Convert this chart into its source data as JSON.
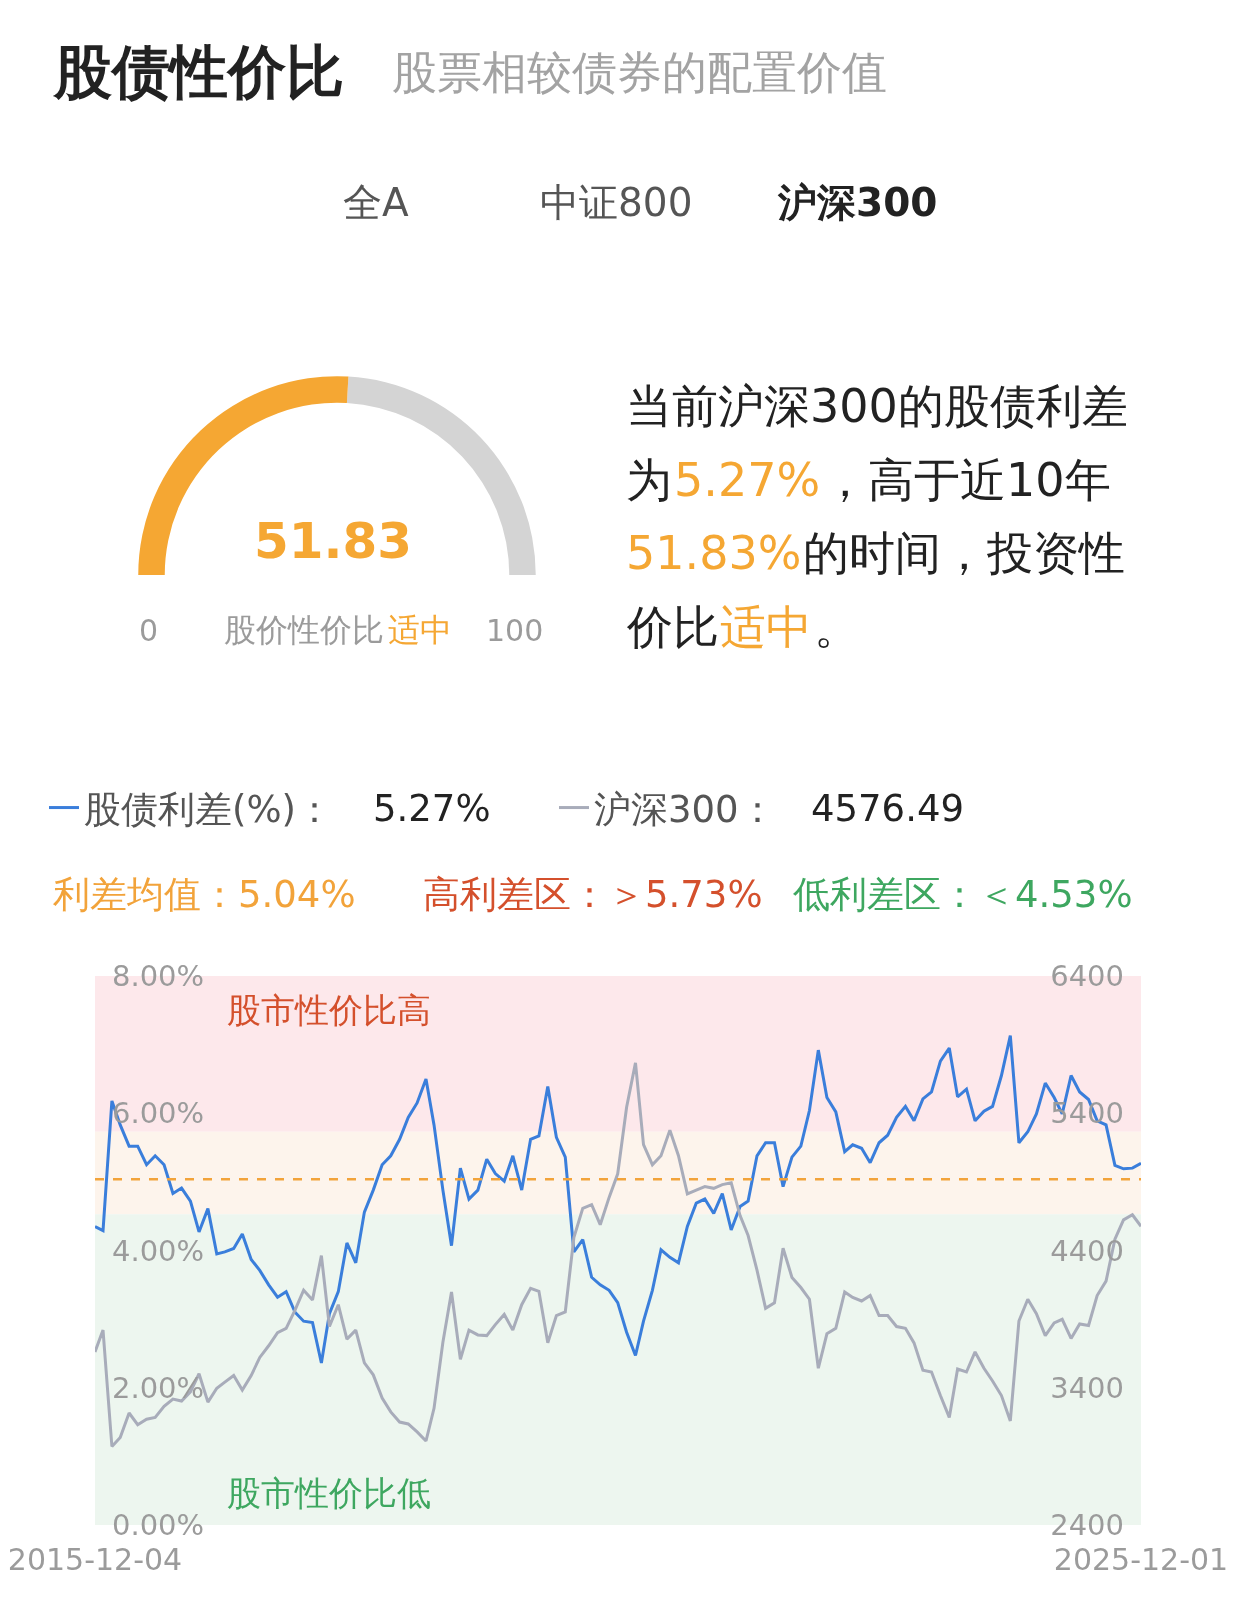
{
  "chart_data": [
    {
      "type": "donut",
      "title": "股债性价比",
      "subtitle": "股票相较债券的配置价值",
      "categories": [
        null,
        null
      ],
      "values": [
        51.83,
        48.17
      ],
      "colors": [
        "#f5a733",
        "#d4d4d4"
      ],
      "value_labels": [
        "51.83",
        null
      ],
      "annotations": [
        "全A",
        "中证800",
        "沪深300",
        "0",
        "股价性价比",
        "适中",
        "100",
        "当前沪深300的股债利差",
        "为",
        "5.27%",
        "，高于近10年",
        "51.83%",
        "的时间，投资性",
        "价比",
        "适中",
        "。"
      ]
    },
    {
      "type": "line",
      "x": [
        "2015-12-04",
        "2016-01",
        "2016-02",
        "2016-03",
        "2016-04",
        "2016-05",
        "2016-06",
        "2016-07",
        "2016-08",
        "2016-09",
        "2016-10",
        "2016-11",
        "2016-12",
        "2017-01",
        "2017-02",
        "2017-03",
        "2017-04",
        "2017-05",
        "2017-06",
        "2017-07",
        "2017-08",
        "2017-09",
        "2017-10",
        "2017-11",
        "2017-12",
        "2018-01",
        "2018-02",
        "2018-03",
        "2018-04",
        "2018-05",
        "2018-06",
        "2018-07",
        "2018-08",
        "2018-09",
        "2018-10",
        "2018-11",
        "2018-12",
        "2019-01",
        "2019-02",
        "2019-03",
        "2019-04",
        "2019-05",
        "2019-06",
        "2019-07",
        "2019-08",
        "2019-09",
        "2019-10",
        "2019-11",
        "2019-12",
        "2020-01",
        "2020-02",
        "2020-03",
        "2020-04",
        "2020-05",
        "2020-06",
        "2020-07",
        "2020-08",
        "2020-09",
        "2020-10",
        "2020-11",
        "2020-12",
        "2021-01",
        "2021-02",
        "2021-03",
        "2021-04",
        "2021-05",
        "2021-06",
        "2021-07",
        "2021-08",
        "2021-09",
        "2021-10",
        "2021-11",
        "2021-12",
        "2022-01",
        "2022-02",
        "2022-03",
        "2022-04",
        "2022-05",
        "2022-06",
        "2022-07",
        "2022-08",
        "2022-09",
        "2022-10",
        "2022-11",
        "2022-12",
        "2023-01",
        "2023-02",
        "2023-03",
        "2023-04",
        "2023-05",
        "2023-06",
        "2023-07",
        "2023-08",
        "2023-09",
        "2023-10",
        "2023-11",
        "2023-12",
        "2024-01",
        "2024-02",
        "2024-03",
        "2024-04",
        "2024-05",
        "2024-06",
        "2024-07",
        "2024-08",
        "2024-09",
        "2024-10",
        "2024-11",
        "2024-12",
        "2025-01",
        "2025-02",
        "2025-03",
        "2025-04",
        "2025-05",
        "2025-06",
        "2025-07",
        "2025-08",
        "2025-09",
        "2025-10",
        "2025-11",
        "2025-12-01"
      ],
      "series": [
        {
          "name": "股债利差(%)：",
          "color": "#3a7edb",
          "values": [
            4.35,
            4.29,
            6.18,
            5.83,
            5.52,
            5.52,
            5.25,
            5.38,
            5.25,
            4.83,
            4.91,
            4.72,
            4.27,
            4.61,
            3.95,
            3.98,
            4.03,
            4.24,
            3.87,
            3.71,
            3.5,
            3.32,
            3.4,
            3.1,
            2.97,
            2.95,
            2.36,
            3.08,
            3.4,
            4.11,
            3.82,
            4.56,
            4.88,
            5.25,
            5.38,
            5.62,
            5.94,
            6.15,
            6.5,
            5.83,
            4.88,
            4.07,
            5.2,
            4.75,
            4.88,
            5.33,
            5.12,
            5.01,
            5.38,
            4.88,
            5.62,
            5.67,
            6.39,
            5.65,
            5.36,
            3.98,
            4.16,
            3.61,
            3.5,
            3.42,
            3.24,
            2.81,
            2.47,
            2.97,
            3.42,
            4.01,
            3.9,
            3.82,
            4.35,
            4.69,
            4.75,
            4.54,
            4.83,
            4.3,
            4.64,
            4.72,
            5.38,
            5.57,
            5.57,
            4.93,
            5.36,
            5.52,
            6.04,
            6.92,
            6.23,
            6.02,
            5.44,
            5.54,
            5.49,
            5.28,
            5.57,
            5.68,
            5.94,
            6.1,
            5.89,
            6.21,
            6.31,
            6.76,
            6.95,
            6.24,
            6.35,
            5.89,
            6.03,
            6.1,
            6.55,
            7.13,
            5.57,
            5.73,
            5.99,
            6.44,
            6.23,
            5.99,
            6.55,
            6.31,
            6.2,
            5.89,
            5.83,
            5.24,
            5.19,
            5.2,
            5.27
          ]
        },
        {
          "name": "沪深300：",
          "color": "#a8acba",
          "axis": "y2",
          "values": [
            3661,
            3820,
            2972,
            3038,
            3216,
            3131,
            3171,
            3184,
            3264,
            3317,
            3303,
            3370,
            3502,
            3295,
            3396,
            3441,
            3489,
            3383,
            3489,
            3621,
            3706,
            3801,
            3833,
            3966,
            4111,
            4040,
            4363,
            3846,
            4005,
            3754,
            3820,
            3581,
            3494,
            3325,
            3224,
            3150,
            3136,
            3078,
            3012,
            3250,
            3732,
            4098,
            3608,
            3820,
            3785,
            3780,
            3860,
            3934,
            3820,
            4005,
            4124,
            4103,
            3727,
            3926,
            3952,
            4495,
            4707,
            4734,
            4588,
            4787,
            4959,
            5444,
            5767,
            5171,
            5025,
            5091,
            5277,
            5091,
            4813,
            4840,
            4866,
            4853,
            4880,
            4893,
            4654,
            4509,
            4257,
            3979,
            4019,
            4416,
            4204,
            4130,
            4045,
            3542,
            3793,
            3833,
            4098,
            4058,
            4032,
            4072,
            3926,
            3926,
            3846,
            3833,
            3727,
            3528,
            3515,
            3343,
            3184,
            3536,
            3515,
            3661,
            3542,
            3449,
            3343,
            3158,
            3886,
            4045,
            3939,
            3780,
            3873,
            3899,
            3759,
            3865,
            3854,
            4072,
            4177,
            4482,
            4623,
            4660,
            4576
          ]
        }
      ],
      "xlim": [
        "2015-12-04",
        "2025-12-01"
      ],
      "xticks": [
        "2015-12-04",
        "2025-12-01"
      ],
      "ylim": [
        0,
        8
      ],
      "yticks": [
        {
          "value": 0,
          "label": "0.00%"
        },
        {
          "value": 2,
          "label": "2.00%"
        },
        {
          "value": 4,
          "label": "4.00%"
        },
        {
          "value": 6,
          "label": "6.00%"
        },
        {
          "value": 8,
          "label": "8.00%"
        }
      ],
      "y2lim": [
        2400,
        6400
      ],
      "y2ticks": [
        2400,
        3400,
        4400,
        5400,
        6400
      ],
      "ref_lines": [
        {
          "axis": "y",
          "value": 5.04,
          "label": "利差均值：5.04%",
          "color": "#f2a33a",
          "line_style": "dashed"
        }
      ],
      "bands": [
        {
          "axis": "y",
          "from": 5.73,
          "to": 8,
          "label": "股市性价比高",
          "color": "#fde8eb"
        },
        {
          "axis": "y",
          "from": 4.53,
          "to": 5.73,
          "color": "#fdf4ec"
        },
        {
          "axis": "y",
          "from": 0,
          "to": 4.53,
          "label": "股市性价比低",
          "color": "#edf6ef"
        }
      ],
      "annotations": [
        "5.27%",
        "4576.49",
        "高利差区：＞5.73%",
        "低利差区：＜4.53%"
      ],
      "legend": "top left"
    }
  ]
}
